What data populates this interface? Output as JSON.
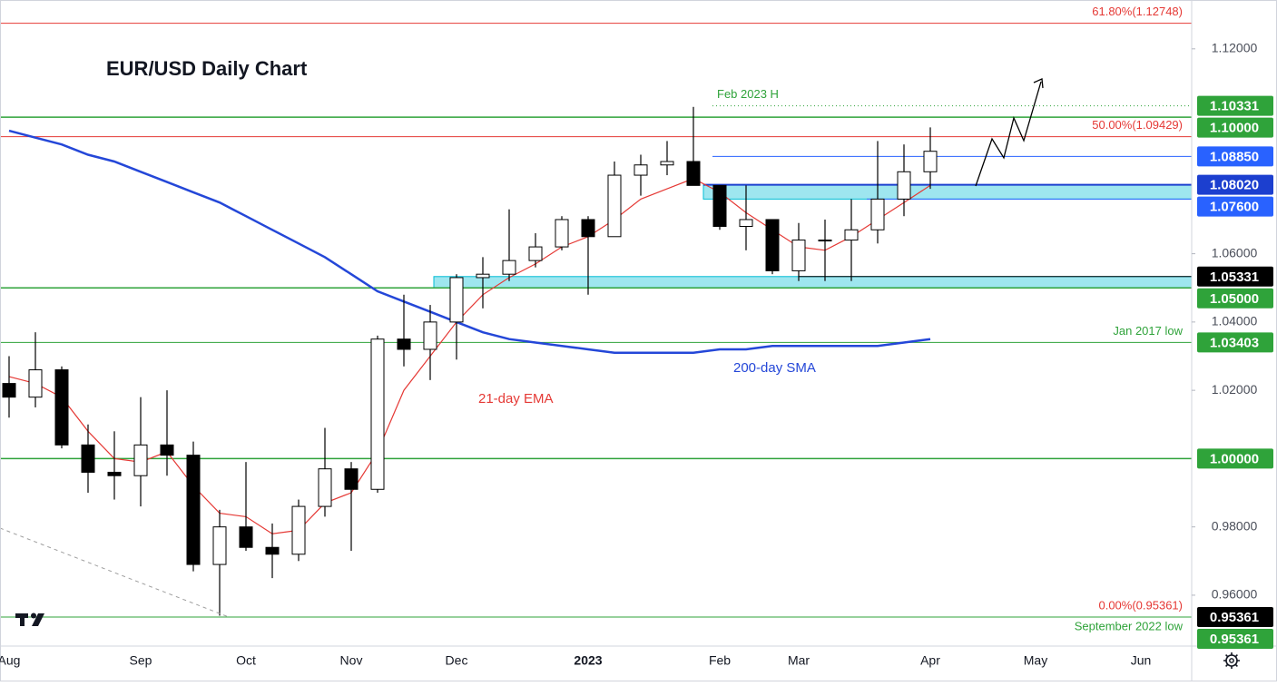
{
  "chart_data": {
    "type": "candlestick",
    "title": "EUR/USD Daily Chart",
    "categories": [
      "Aug",
      null,
      null,
      null,
      null,
      "Sep",
      null,
      null,
      null,
      "Oct",
      null,
      null,
      null,
      "Nov",
      null,
      null,
      null,
      "Dec",
      null,
      null,
      null,
      null,
      "2023",
      null,
      null,
      null,
      null,
      "Feb",
      null,
      null,
      "Mar",
      null,
      null,
      null,
      null,
      "Apr",
      null,
      null,
      null,
      "May",
      null,
      null,
      null,
      "Jun",
      null
    ],
    "open": [
      1.022,
      1.018,
      1.026,
      1.004,
      0.996,
      0.995,
      1.004,
      1.001,
      0.969,
      0.98,
      0.974,
      0.972,
      0.986,
      0.997,
      0.991,
      1.035,
      1.032,
      1.04,
      1.053,
      1.054,
      1.058,
      1.062,
      1.07,
      1.065,
      1.083,
      1.086,
      1.087,
      1.08,
      1.068,
      1.07,
      1.055,
      1.064,
      1.064,
      1.067,
      1.076,
      1.084,
      null,
      null,
      null,
      null,
      null,
      null,
      null,
      null,
      null
    ],
    "high": [
      1.03,
      1.037,
      1.027,
      1.01,
      1.008,
      1.018,
      1.02,
      1.005,
      0.985,
      0.999,
      0.981,
      0.988,
      1.009,
      0.999,
      1.036,
      1.048,
      1.045,
      1.054,
      1.059,
      1.073,
      1.066,
      1.071,
      1.071,
      1.087,
      1.089,
      1.093,
      1.103,
      1.08,
      1.08,
      1.07,
      1.069,
      1.07,
      1.076,
      1.093,
      1.092,
      1.097,
      null,
      null,
      null,
      null,
      null,
      null,
      null,
      null,
      null
    ],
    "low": [
      1.012,
      1.015,
      1.003,
      0.99,
      0.988,
      0.986,
      0.995,
      0.967,
      0.954,
      0.973,
      0.965,
      0.97,
      0.983,
      0.973,
      0.99,
      1.027,
      1.023,
      1.029,
      1.044,
      1.052,
      1.056,
      1.061,
      1.048,
      1.065,
      1.077,
      1.083,
      1.08,
      1.067,
      1.061,
      1.054,
      1.052,
      1.052,
      1.052,
      1.063,
      1.071,
      1.079,
      null,
      null,
      null,
      null,
      null,
      null,
      null,
      null,
      null
    ],
    "close": [
      1.018,
      1.026,
      1.004,
      0.996,
      0.995,
      1.004,
      1.001,
      0.969,
      0.98,
      0.974,
      0.972,
      0.986,
      0.997,
      0.991,
      1.035,
      1.032,
      1.04,
      1.053,
      1.054,
      1.058,
      1.062,
      1.07,
      1.065,
      1.083,
      1.086,
      1.087,
      1.08,
      1.068,
      1.07,
      1.055,
      1.064,
      1.064,
      1.067,
      1.076,
      1.084,
      1.09,
      null,
      null,
      null,
      null,
      null,
      null,
      null,
      null,
      null
    ],
    "up_color": "#ffffff",
    "down_color": "#000000",
    "series": [
      {
        "name": "21-day EMA",
        "color": "#e53935",
        "values": [
          1.024,
          1.022,
          1.018,
          1.008,
          1.0,
          0.999,
          1.002,
          0.992,
          0.984,
          0.983,
          0.978,
          0.979,
          0.987,
          0.99,
          1.002,
          1.02,
          1.03,
          1.04,
          1.048,
          1.053,
          1.057,
          1.062,
          1.065,
          1.07,
          1.076,
          1.079,
          1.082,
          1.078,
          1.072,
          1.067,
          1.062,
          1.061,
          1.065,
          1.07,
          1.075,
          1.08,
          null,
          null,
          null,
          null,
          null,
          null,
          null,
          null,
          null
        ]
      },
      {
        "name": "200-day SMA",
        "color": "#2447d8",
        "values": [
          1.096,
          1.094,
          1.092,
          1.089,
          1.087,
          1.084,
          1.081,
          1.078,
          1.075,
          1.071,
          1.067,
          1.063,
          1.059,
          1.054,
          1.049,
          1.046,
          1.043,
          1.04,
          1.037,
          1.035,
          1.034,
          1.033,
          1.032,
          1.031,
          1.031,
          1.031,
          1.031,
          1.032,
          1.032,
          1.033,
          1.033,
          1.033,
          1.033,
          1.033,
          1.034,
          1.035,
          null,
          null,
          null,
          null,
          null,
          null,
          null,
          null,
          null
        ]
      }
    ],
    "ylim": [
      0.9451,
      1.1343
    ],
    "yticks": [
      {
        "value": 1.12,
        "label": "1.12000"
      },
      {
        "value": 1.06,
        "label": "1.06000"
      },
      {
        "value": 1.04,
        "label": "1.04000"
      },
      {
        "value": 1.02,
        "label": "1.02000"
      },
      {
        "value": 0.98,
        "label": "0.98000"
      },
      {
        "value": 0.96,
        "label": "0.96000"
      }
    ],
    "levels": [
      {
        "value": 1.12748,
        "note": "61.80%(1.12748)",
        "color": "#e53935"
      },
      {
        "value": 1.10331,
        "label": "1.10331",
        "note": "Feb 2023 H",
        "color": "#2fa33a"
      },
      {
        "value": 1.1,
        "label": "1.10000",
        "color": "#2fa33a"
      },
      {
        "value": 1.09429,
        "note": "50.00%(1.09429)",
        "color": "#e53935"
      },
      {
        "value": 1.0885,
        "label": "1.08850",
        "color": "#2962ff"
      },
      {
        "value": 1.0802,
        "label": "1.08020",
        "color": "#1c3fcf"
      },
      {
        "value": 1.076,
        "label": "1.07600",
        "color": "#2962ff"
      },
      {
        "value": 1.05331,
        "label": "1.05331",
        "color": "#000000"
      },
      {
        "value": 1.05,
        "label": "1.05000",
        "color": "#2fa33a"
      },
      {
        "value": 1.03403,
        "label": "1.03403",
        "note": "Jan 2017 low",
        "color": "#2fa33a"
      },
      {
        "value": 1.0,
        "label": "1.00000",
        "color": "#2fa33a"
      },
      {
        "value": 0.95361,
        "label": "0.95361",
        "note": "0.00%(0.95361)",
        "color": "#e53935",
        "label_color": "#000000"
      },
      {
        "value": 0.95361,
        "label": "0.95361",
        "note": "September 2022 low",
        "color": "#2fa33a"
      }
    ],
    "zones": [
      {
        "low": 1.076,
        "high": 1.0802,
        "color": "#00bcd4"
      },
      {
        "low": 1.05,
        "high": 1.05331,
        "color": "#00bcd4"
      }
    ]
  }
}
